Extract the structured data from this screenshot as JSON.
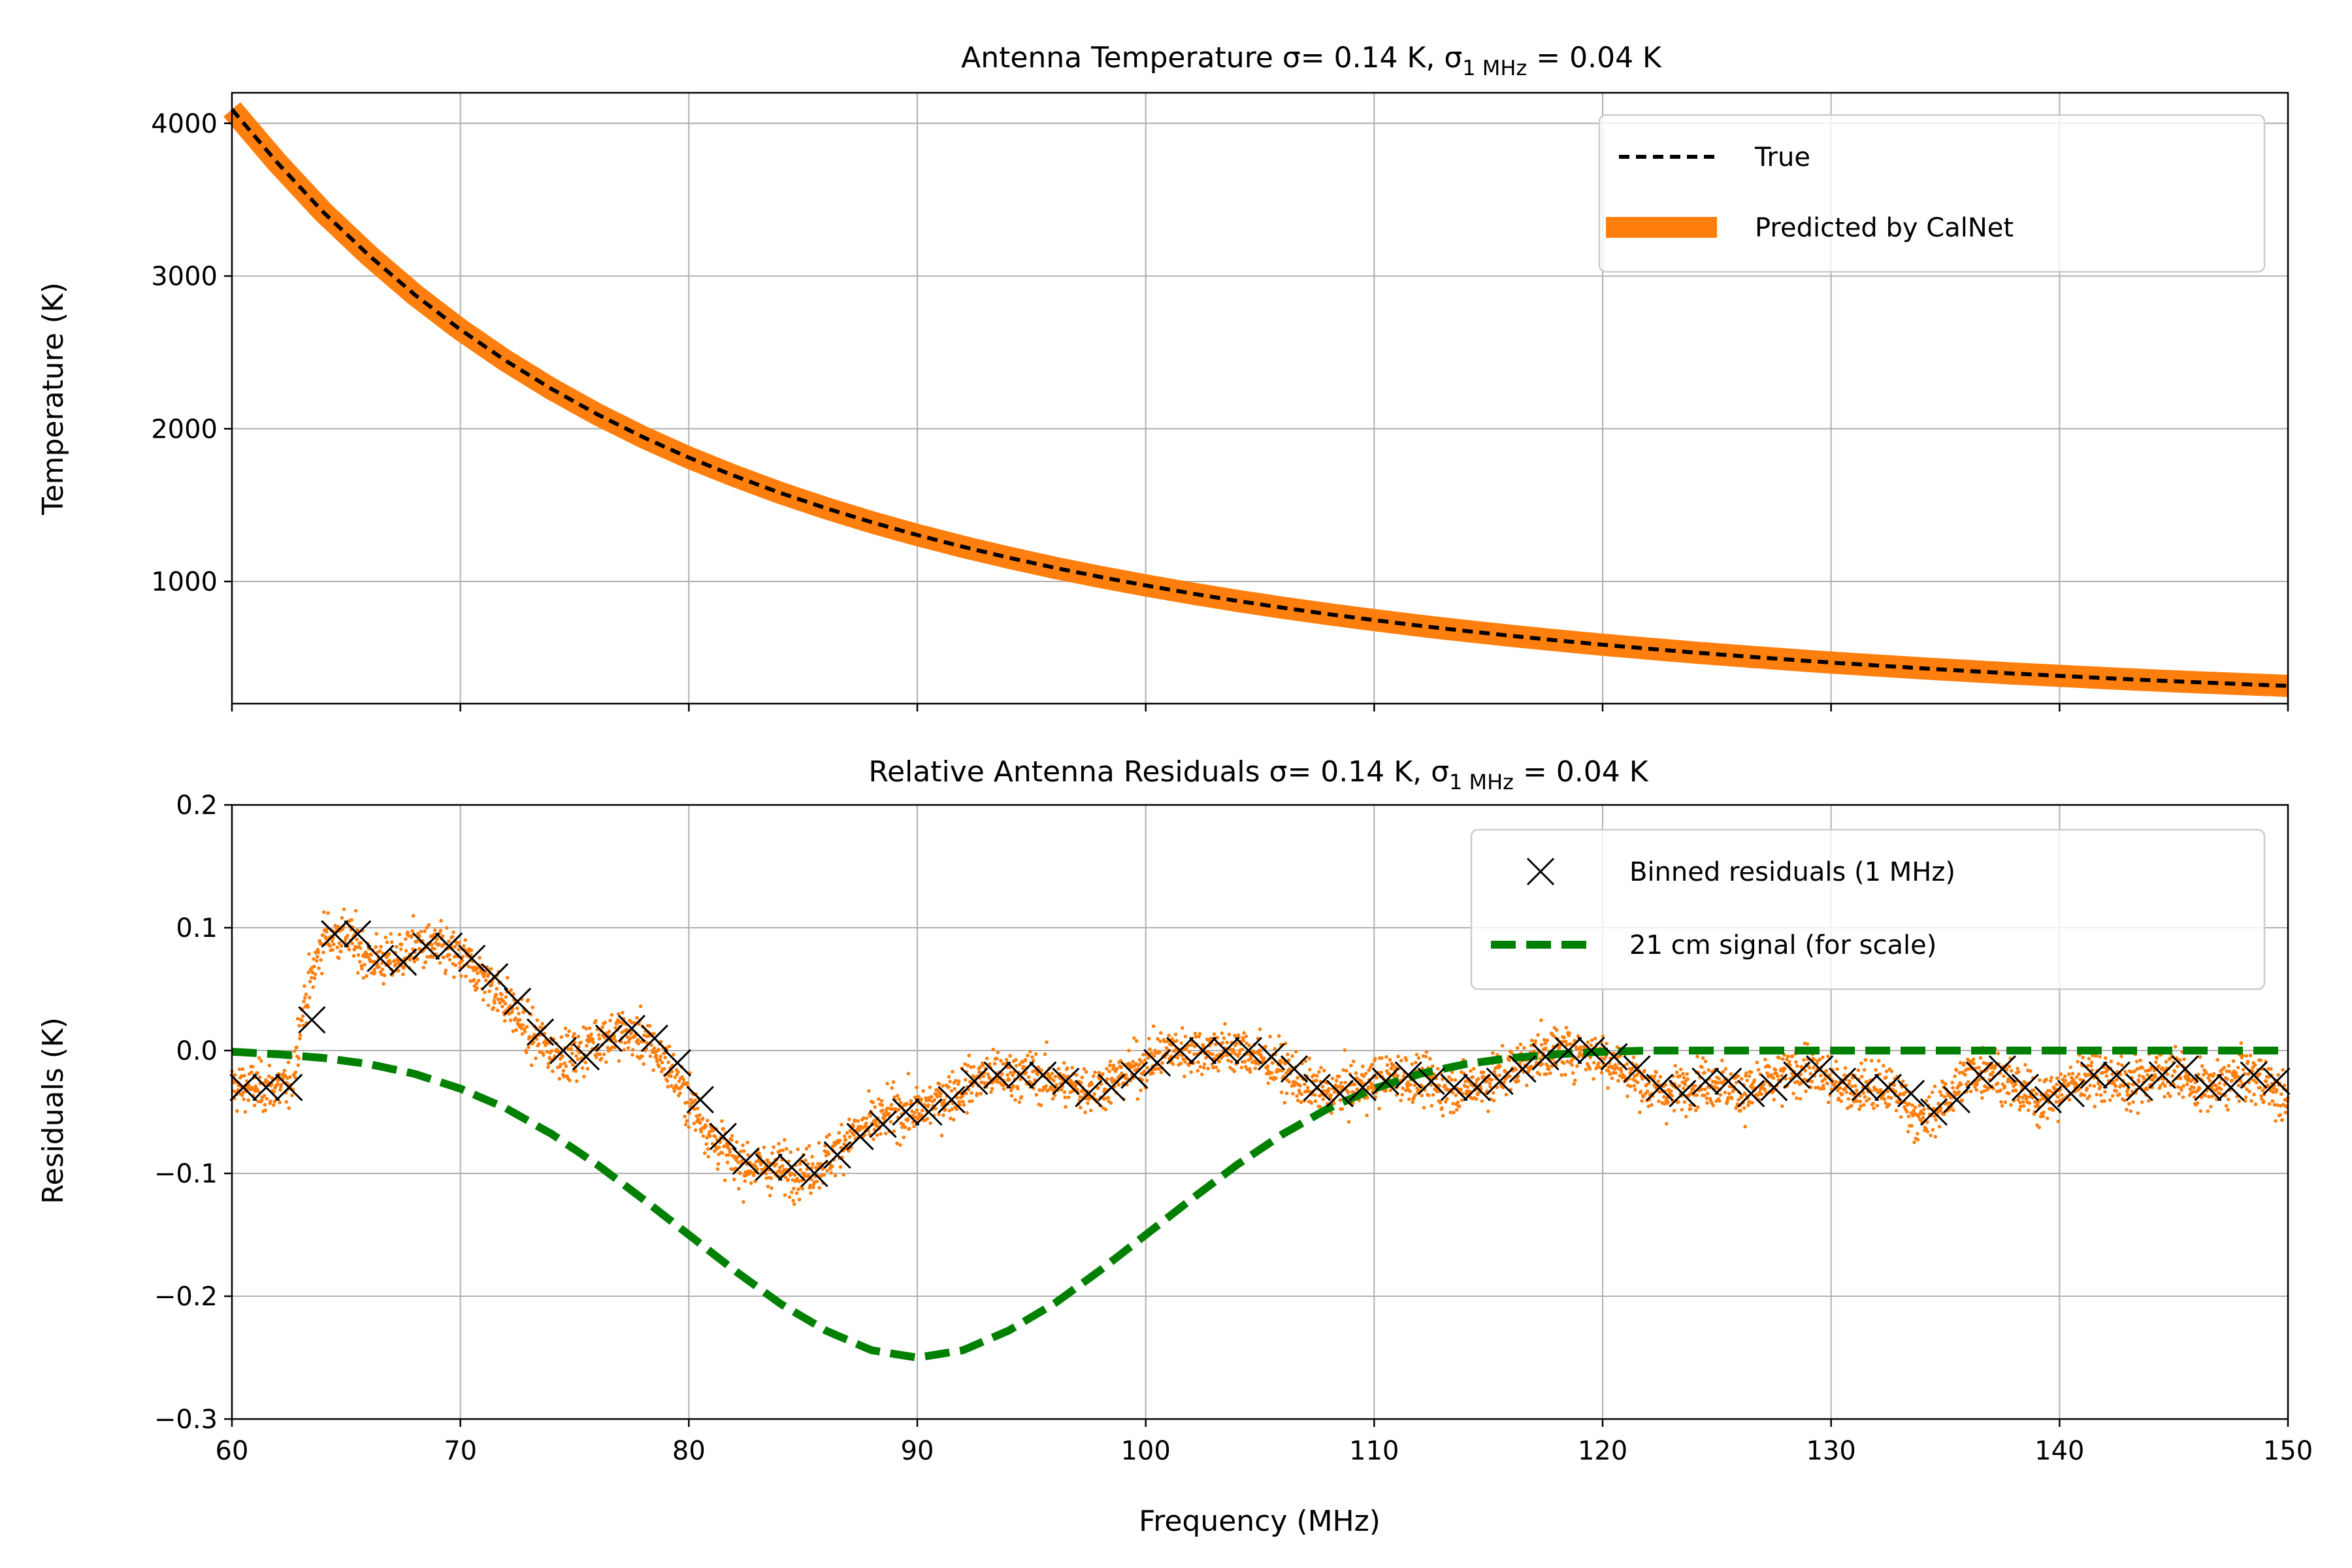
{
  "chart_data": [
    {
      "type": "line",
      "title": "Antenna Temperature  σ= 0.14 K,  σ",
      "title_sub": "1 MHz",
      "title_tail": " = 0.04 K",
      "xlabel": "",
      "ylabel": "Temperature (K)",
      "xlim": [
        60,
        150
      ],
      "ylim": [
        200,
        4200
      ],
      "grid": true,
      "legend_position": "top-right",
      "x_ticks": [
        60,
        70,
        80,
        90,
        100,
        110,
        120,
        130,
        140,
        150
      ],
      "y_ticks": [
        1000,
        2000,
        3000,
        4000
      ],
      "y_tick_labels": [
        "1000",
        "2000",
        "3000",
        "4000"
      ],
      "series": [
        {
          "name": "True",
          "style": "dashed",
          "color": "#000000",
          "x": [
            60,
            62,
            64,
            66,
            68,
            70,
            72,
            74,
            76,
            78,
            80,
            82,
            84,
            86,
            88,
            90,
            92,
            94,
            96,
            98,
            100,
            102,
            104,
            106,
            108,
            110,
            112,
            114,
            116,
            118,
            120,
            122,
            124,
            126,
            128,
            130,
            132,
            134,
            136,
            138,
            140,
            142,
            144,
            146,
            148,
            150
          ],
          "y": [
            4091,
            3740,
            3418,
            3135,
            2878,
            2649,
            2444,
            2260,
            2094,
            1945,
            1811,
            1691,
            1580,
            1480,
            1388,
            1304,
            1227,
            1156,
            1090,
            1030,
            974,
            922,
            873,
            828,
            786,
            747,
            710,
            676,
            644,
            614,
            586,
            560,
            535,
            512,
            490,
            469,
            450,
            431,
            414,
            397,
            382,
            367,
            353,
            340,
            328,
            316
          ]
        },
        {
          "name": "Predicted by CalNet",
          "style": "thick",
          "color": "#ff7f0e",
          "x": [
            60,
            62,
            64,
            66,
            68,
            70,
            72,
            74,
            76,
            78,
            80,
            82,
            84,
            86,
            88,
            90,
            92,
            94,
            96,
            98,
            100,
            102,
            104,
            106,
            108,
            110,
            112,
            114,
            116,
            118,
            120,
            122,
            124,
            126,
            128,
            130,
            132,
            134,
            136,
            138,
            140,
            142,
            144,
            146,
            148,
            150
          ],
          "y": [
            4091,
            3740,
            3418,
            3135,
            2878,
            2649,
            2444,
            2260,
            2094,
            1945,
            1811,
            1691,
            1580,
            1480,
            1388,
            1304,
            1227,
            1156,
            1090,
            1030,
            974,
            922,
            873,
            828,
            786,
            747,
            710,
            676,
            644,
            614,
            586,
            560,
            535,
            512,
            490,
            469,
            450,
            431,
            414,
            397,
            382,
            367,
            353,
            340,
            328,
            316
          ]
        }
      ]
    },
    {
      "type": "scatter",
      "title": "Relative Antenna Residuals  σ= 0.14 K,  σ",
      "title_sub": "1 MHz",
      "title_tail": " = 0.04 K",
      "xlabel": "Frequency (MHz)",
      "ylabel": "Residuals (K)",
      "xlim": [
        60,
        150
      ],
      "ylim": [
        -0.3,
        0.2
      ],
      "grid": true,
      "legend_position": "top-right",
      "x_ticks": [
        60,
        70,
        80,
        90,
        100,
        110,
        120,
        130,
        140,
        150
      ],
      "x_tick_labels": [
        "60",
        "70",
        "80",
        "90",
        "100",
        "110",
        "120",
        "130",
        "140",
        "150"
      ],
      "y_ticks": [
        -0.3,
        -0.2,
        -0.1,
        0.0,
        0.1,
        0.2
      ],
      "y_tick_labels": [
        "−0.3",
        "−0.2",
        "−0.1",
        "0.0",
        "0.1",
        "0.2"
      ],
      "raw_residuals": {
        "color": "#ff7f0e",
        "noise_sigma": 0.14,
        "trend_x": [
          60,
          61,
          62,
          62.6,
          63,
          63.5,
          64,
          65,
          66,
          67,
          68,
          69,
          70,
          71,
          72,
          73,
          74,
          75,
          76,
          77,
          78,
          79,
          80,
          81,
          82,
          83,
          84,
          85,
          86,
          87,
          88,
          89,
          90,
          91,
          92,
          93,
          94,
          95,
          96,
          97,
          98,
          99,
          100,
          101,
          102,
          103,
          104,
          105,
          106,
          107,
          108,
          109,
          110,
          111,
          112,
          113,
          114,
          115,
          116,
          117,
          118,
          119,
          120,
          121,
          122,
          123,
          124,
          125,
          126,
          127,
          128,
          129,
          130,
          131,
          132,
          133,
          134,
          135,
          136,
          137,
          138,
          139,
          140,
          141,
          142,
          143,
          144,
          145,
          146,
          147,
          148,
          149,
          150
        ],
        "trend_y": [
          -0.03,
          -0.03,
          -0.03,
          -0.03,
          0.025,
          0.06,
          0.092,
          0.095,
          0.075,
          0.072,
          0.085,
          0.083,
          0.075,
          0.06,
          0.04,
          0.015,
          0.0,
          -0.005,
          0.01,
          0.015,
          0.01,
          -0.01,
          -0.04,
          -0.07,
          -0.09,
          -0.095,
          -0.095,
          -0.1,
          -0.09,
          -0.07,
          -0.06,
          -0.05,
          -0.05,
          -0.04,
          -0.03,
          -0.02,
          -0.02,
          -0.02,
          -0.025,
          -0.03,
          -0.03,
          -0.02,
          -0.01,
          0.0,
          0.0,
          0.0,
          0.0,
          -0.005,
          -0.015,
          -0.03,
          -0.035,
          -0.03,
          -0.025,
          -0.02,
          -0.025,
          -0.03,
          -0.03,
          -0.025,
          -0.015,
          -0.005,
          0.0,
          0.0,
          -0.005,
          -0.015,
          -0.03,
          -0.035,
          -0.025,
          -0.025,
          -0.035,
          -0.03,
          -0.02,
          -0.015,
          -0.025,
          -0.03,
          -0.03,
          -0.035,
          -0.06,
          -0.04,
          -0.02,
          -0.015,
          -0.03,
          -0.04,
          -0.035,
          -0.02,
          -0.02,
          -0.03,
          -0.02,
          -0.015,
          -0.03,
          -0.03,
          -0.02,
          -0.025,
          -0.045
        ]
      },
      "series": [
        {
          "name": "Binned residuals (1 MHz)",
          "marker": "x",
          "color": "#000000",
          "x": [
            60.5,
            61.5,
            62.5,
            63.5,
            64.5,
            65.5,
            66.5,
            67.5,
            68.5,
            69.5,
            70.5,
            71.5,
            72.5,
            73.5,
            74.5,
            75.5,
            76.5,
            77.5,
            78.5,
            79.5,
            80.5,
            81.5,
            82.5,
            83.5,
            84.5,
            85.5,
            86.5,
            87.5,
            88.5,
            89.5,
            90.5,
            91.5,
            92.5,
            93.5,
            94.5,
            95.5,
            96.5,
            97.5,
            98.5,
            99.5,
            100.5,
            101.5,
            102.5,
            103.5,
            104.5,
            105.5,
            106.5,
            107.5,
            108.5,
            109.5,
            110.5,
            111.5,
            112.5,
            113.5,
            114.5,
            115.5,
            116.5,
            117.5,
            118.5,
            119.5,
            120.5,
            121.5,
            122.5,
            123.5,
            124.5,
            125.5,
            126.5,
            127.5,
            128.5,
            129.5,
            130.5,
            131.5,
            132.5,
            133.5,
            134.5,
            135.5,
            136.5,
            137.5,
            138.5,
            139.5,
            140.5,
            141.5,
            142.5,
            143.5,
            144.5,
            145.5,
            146.5,
            147.5,
            148.5,
            149.5
          ],
          "y": [
            -0.03,
            -0.03,
            -0.03,
            0.025,
            0.095,
            0.095,
            0.075,
            0.072,
            0.085,
            0.085,
            0.075,
            0.06,
            0.04,
            0.015,
            0.0,
            -0.005,
            0.01,
            0.018,
            0.01,
            -0.01,
            -0.04,
            -0.07,
            -0.09,
            -0.095,
            -0.095,
            -0.1,
            -0.085,
            -0.07,
            -0.06,
            -0.05,
            -0.05,
            -0.04,
            -0.025,
            -0.02,
            -0.02,
            -0.02,
            -0.025,
            -0.035,
            -0.03,
            -0.02,
            -0.01,
            0.0,
            0.0,
            0.0,
            0.0,
            -0.005,
            -0.015,
            -0.03,
            -0.035,
            -0.03,
            -0.025,
            -0.02,
            -0.025,
            -0.03,
            -0.03,
            -0.025,
            -0.015,
            -0.005,
            0.0,
            0.0,
            -0.005,
            -0.015,
            -0.03,
            -0.035,
            -0.025,
            -0.025,
            -0.035,
            -0.03,
            -0.02,
            -0.015,
            -0.025,
            -0.03,
            -0.03,
            -0.035,
            -0.05,
            -0.04,
            -0.02,
            -0.015,
            -0.03,
            -0.04,
            -0.035,
            -0.02,
            -0.02,
            -0.03,
            -0.02,
            -0.015,
            -0.03,
            -0.03,
            -0.02,
            -0.025
          ]
        },
        {
          "name": "21 cm signal (for scale)",
          "style": "dashed",
          "color": "#008000",
          "x": [
            60,
            62,
            64,
            66,
            68,
            70,
            72,
            74,
            76,
            78,
            80,
            82,
            84,
            86,
            88,
            90,
            92,
            94,
            96,
            98,
            100,
            102,
            104,
            106,
            108,
            110,
            112,
            114,
            116,
            118,
            120,
            122,
            124,
            126,
            128,
            130,
            132,
            134,
            136,
            138,
            140,
            142,
            144,
            146,
            148,
            150
          ],
          "y": [
            -0.001,
            -0.003,
            -0.006,
            -0.011,
            -0.019,
            -0.031,
            -0.047,
            -0.068,
            -0.093,
            -0.121,
            -0.15,
            -0.179,
            -0.206,
            -0.228,
            -0.244,
            -0.25,
            -0.244,
            -0.228,
            -0.206,
            -0.179,
            -0.15,
            -0.121,
            -0.093,
            -0.068,
            -0.047,
            -0.031,
            -0.019,
            -0.011,
            -0.006,
            -0.003,
            -0.001,
            0.0,
            0.0,
            0.0,
            0.0,
            0.0,
            0.0,
            0.0,
            0.0,
            0.0,
            0.0,
            0.0,
            0.0,
            0.0,
            0.0,
            0.0
          ]
        }
      ]
    }
  ]
}
